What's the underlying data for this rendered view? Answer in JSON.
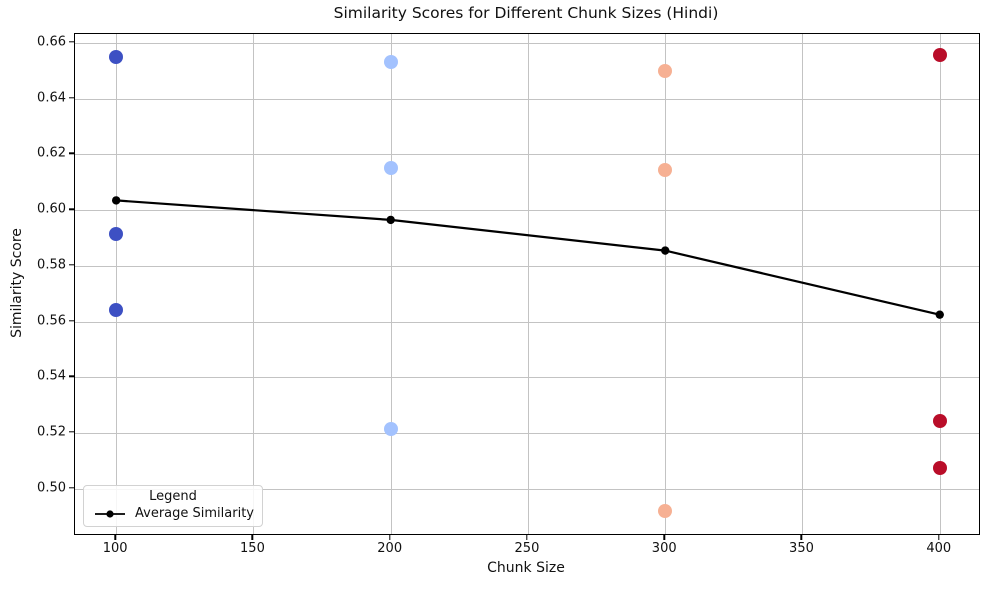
{
  "chart_data": {
    "type": "scatter",
    "title": "Similarity Scores for Different Chunk Sizes (Hindi)",
    "xlabel": "Chunk Size",
    "ylabel": "Similarity Score",
    "xlim": [
      85,
      414.3
    ],
    "ylim": [
      0.4838,
      0.6632
    ],
    "x_ticks": [
      100,
      150,
      200,
      250,
      300,
      350,
      400
    ],
    "y_ticks": [
      0.5,
      0.52,
      0.54,
      0.56,
      0.58,
      0.6,
      0.62,
      0.64,
      0.66
    ],
    "grid": true,
    "colors": {
      "grid": "#c3c3c3",
      "average_line": "#000000"
    },
    "scatter_series": [
      {
        "chunk_size": 100,
        "color": "#3d50c3",
        "values": [
          0.655,
          0.5915,
          0.564
        ]
      },
      {
        "chunk_size": 200,
        "color": "#a3c2fe",
        "values": [
          0.653,
          0.615,
          0.5215
        ]
      },
      {
        "chunk_size": 300,
        "color": "#f6b093",
        "values": [
          0.65,
          0.6145,
          0.492
        ]
      },
      {
        "chunk_size": 400,
        "color": "#b90d29",
        "values": [
          0.6555,
          0.5245,
          0.5075
        ]
      }
    ],
    "line_series": {
      "name": "Average Similarity",
      "color": "#000000",
      "x": [
        100,
        200,
        300,
        400
      ],
      "y": [
        0.6035,
        0.5965,
        0.5855,
        0.5625
      ]
    },
    "legend": {
      "title": "Legend",
      "entries": [
        "Average Similarity"
      ],
      "position": "lower-left"
    }
  }
}
